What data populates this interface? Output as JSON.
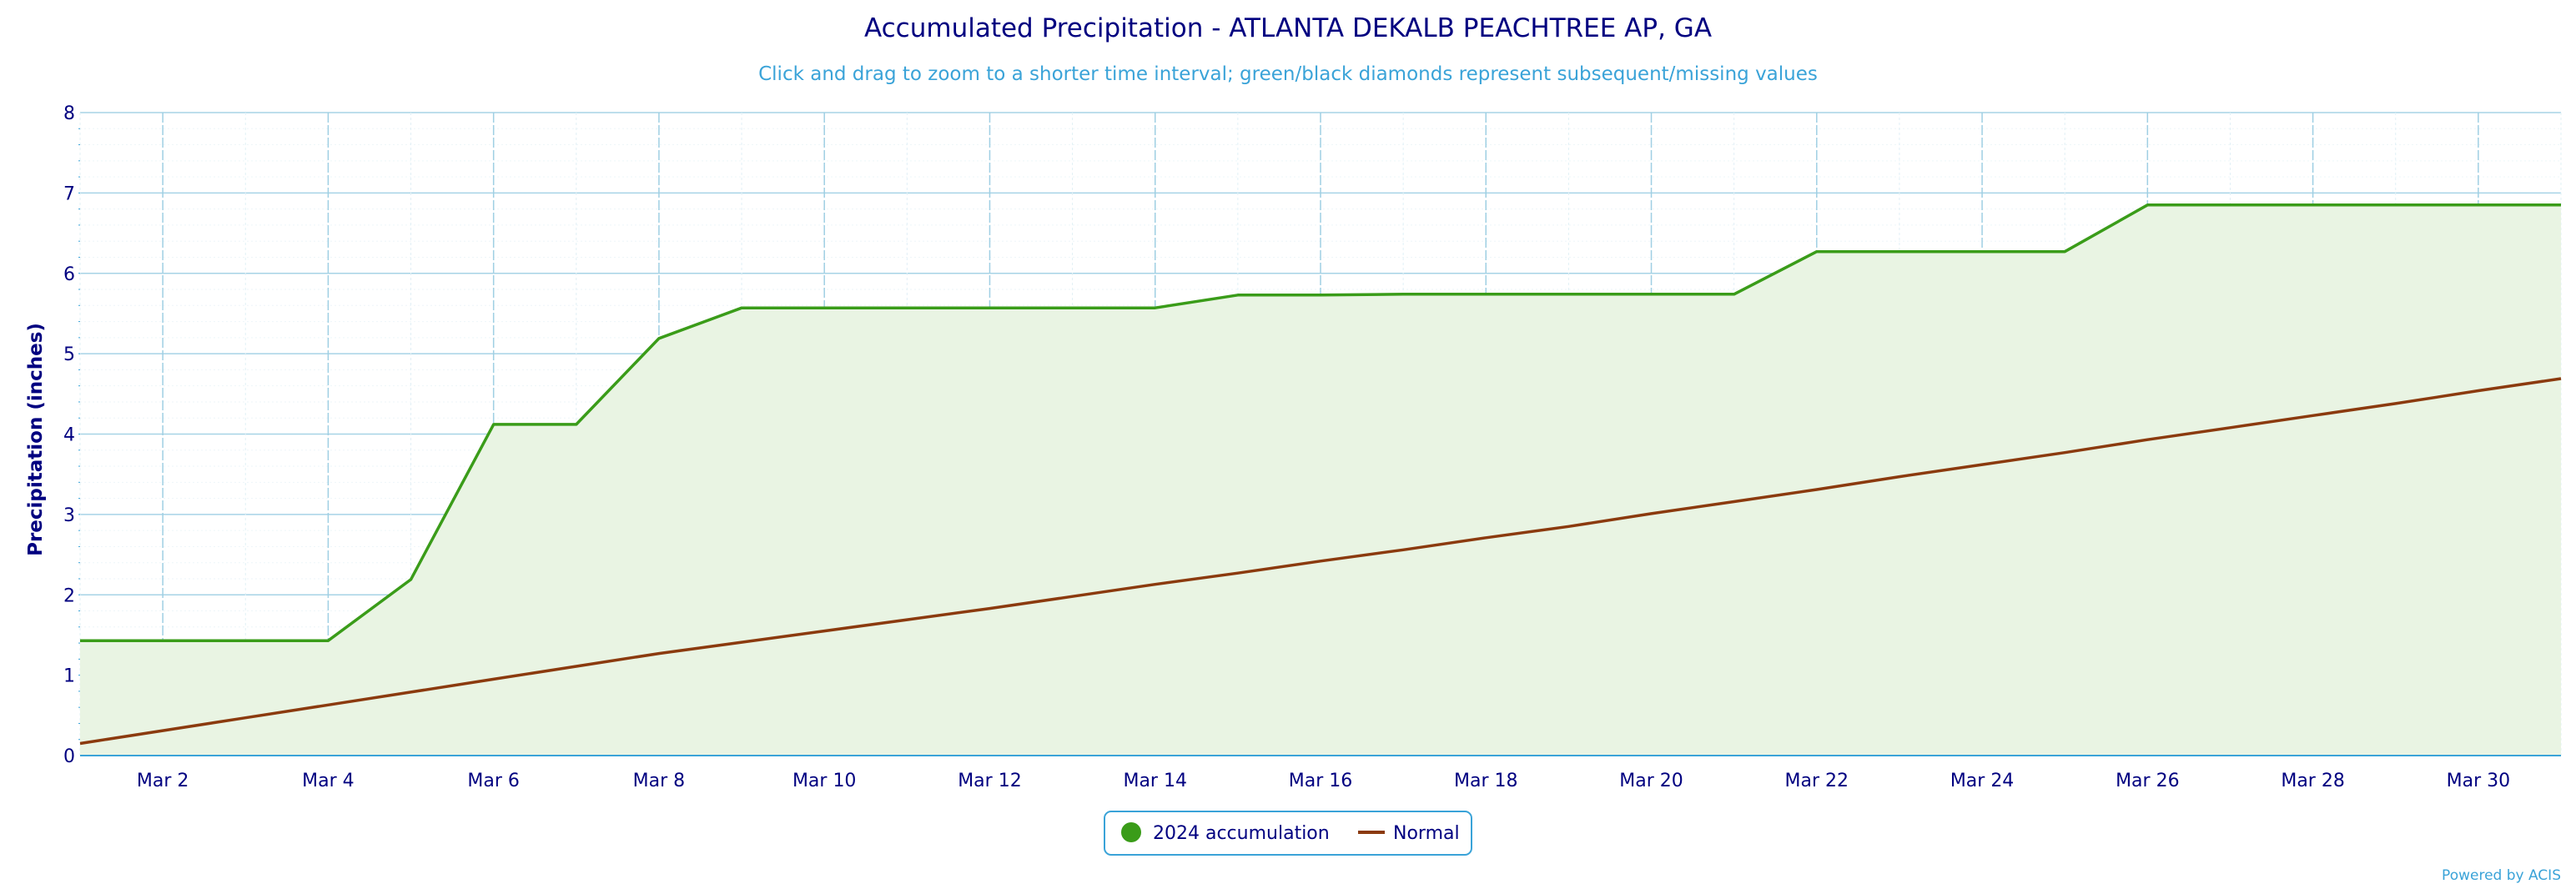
{
  "chart_data": {
    "type": "area",
    "title": "Accumulated Precipitation - ATLANTA DEKALB PEACHTREE AP, GA",
    "subtitle": "Click and drag to zoom to a shorter time interval; green/black diamonds represent subsequent/missing values",
    "ylabel": "Precipitation (inches)",
    "xlabel": "",
    "ylim": [
      0,
      8
    ],
    "y_ticks": [
      "0",
      "1",
      "2",
      "3",
      "4",
      "5",
      "6",
      "7",
      "8"
    ],
    "x_ticks": [
      "Mar 2",
      "Mar 4",
      "Mar 6",
      "Mar 8",
      "Mar 10",
      "Mar 12",
      "Mar 14",
      "Mar 16",
      "Mar 18",
      "Mar 20",
      "Mar 22",
      "Mar 24",
      "Mar 26",
      "Mar 28",
      "Mar 30"
    ],
    "x_tick_days": [
      2,
      4,
      6,
      8,
      10,
      12,
      14,
      16,
      18,
      20,
      22,
      24,
      26,
      28,
      30
    ],
    "xlim": [
      1,
      31
    ],
    "grid": true,
    "legend_position": "bottom-center",
    "series": [
      {
        "name": "2024 accumulation",
        "kind": "area",
        "color": "#3a9c19",
        "fill": "#e9f4e3",
        "days": [
          1,
          2,
          3,
          4,
          5,
          6,
          7,
          8,
          9,
          10,
          11,
          12,
          13,
          14,
          15,
          16,
          17,
          18,
          19,
          20,
          21,
          22,
          23,
          24,
          25,
          26,
          27,
          28,
          29,
          30,
          31
        ],
        "values": [
          1.43,
          1.43,
          1.43,
          1.43,
          2.19,
          4.12,
          4.12,
          5.19,
          5.57,
          5.57,
          5.57,
          5.57,
          5.57,
          5.57,
          5.73,
          5.73,
          5.74,
          5.74,
          5.74,
          5.74,
          5.74,
          6.27,
          6.27,
          6.27,
          6.27,
          6.85,
          6.85,
          6.85,
          6.85,
          6.85,
          6.85
        ]
      },
      {
        "name": "Normal",
        "kind": "line",
        "color": "#8b3a0e",
        "days": [
          1,
          2,
          3,
          4,
          5,
          6,
          7,
          8,
          9,
          10,
          11,
          12,
          13,
          14,
          15,
          16,
          17,
          18,
          19,
          20,
          21,
          22,
          23,
          24,
          25,
          26,
          27,
          28,
          29,
          30,
          31
        ],
        "values": [
          0.15,
          0.31,
          0.47,
          0.63,
          0.79,
          0.95,
          1.11,
          1.27,
          1.41,
          1.55,
          1.69,
          1.83,
          1.98,
          2.13,
          2.27,
          2.42,
          2.56,
          2.71,
          2.85,
          3.01,
          3.16,
          3.31,
          3.47,
          3.62,
          3.77,
          3.93,
          4.08,
          4.23,
          4.38,
          4.54,
          4.69
        ]
      }
    ]
  },
  "credit": "Powered by ACIS"
}
